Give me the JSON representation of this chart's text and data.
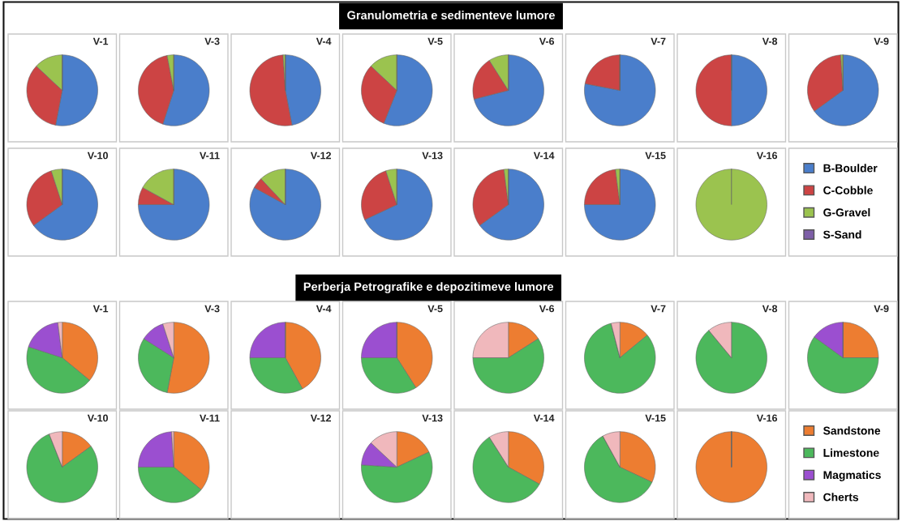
{
  "chart_data": [
    {
      "type": "other",
      "title": "Granulometria e sedimenteve lumore"
    },
    {
      "type": "pie",
      "title": "V-1",
      "categories": [
        "B-Boulder",
        "C-Cobble",
        "G-Gravel",
        "S-Sand"
      ],
      "colors": [
        "#4a7ecb",
        "#cc4444",
        "#9bc34f",
        "#7e5fa8"
      ],
      "values": [
        53,
        34,
        13,
        0
      ],
      "legend": "right"
    },
    {
      "type": "pie",
      "title": "V-3",
      "categories": [
        null,
        null,
        null,
        null
      ],
      "colors": [
        "#4a7ecb",
        "#cc4444",
        "#9bc34f",
        "#7e5fa8"
      ],
      "values": [
        55,
        42,
        3,
        0
      ]
    },
    {
      "type": "pie",
      "title": "V-4",
      "categories": [
        null,
        null,
        null,
        null
      ],
      "colors": [
        "#4a7ecb",
        "#cc4444",
        "#9bc34f",
        "#7e5fa8"
      ],
      "values": [
        47,
        52,
        1,
        0
      ]
    },
    {
      "type": "pie",
      "title": "V-5",
      "categories": [
        null,
        null,
        null,
        null
      ],
      "colors": [
        "#4a7ecb",
        "#cc4444",
        "#9bc34f",
        "#7e5fa8"
      ],
      "values": [
        56,
        31,
        13,
        0
      ]
    },
    {
      "type": "pie",
      "title": "V-6",
      "categories": [
        null,
        null,
        null,
        null
      ],
      "colors": [
        "#4a7ecb",
        "#cc4444",
        "#9bc34f",
        "#7e5fa8"
      ],
      "values": [
        71,
        20,
        9,
        0
      ]
    },
    {
      "type": "pie",
      "title": "V-7",
      "categories": [
        null,
        null,
        null,
        null
      ],
      "colors": [
        "#4a7ecb",
        "#cc4444",
        "#9bc34f",
        "#7e5fa8"
      ],
      "values": [
        78,
        22,
        0,
        0
      ]
    },
    {
      "type": "pie",
      "title": "V-8",
      "categories": [
        null,
        null,
        null,
        null
      ],
      "colors": [
        "#4a7ecb",
        "#cc4444",
        "#9bc34f",
        "#7e5fa8"
      ],
      "values": [
        50,
        50,
        0,
        0
      ]
    },
    {
      "type": "pie",
      "title": "V-9",
      "categories": [
        null,
        null,
        null,
        null
      ],
      "colors": [
        "#4a7ecb",
        "#cc4444",
        "#9bc34f",
        "#7e5fa8"
      ],
      "values": [
        65,
        34,
        1,
        0
      ]
    },
    {
      "type": "pie",
      "title": "V-10",
      "categories": [
        null,
        null,
        null,
        null
      ],
      "colors": [
        "#4a7ecb",
        "#cc4444",
        "#9bc34f",
        "#7e5fa8"
      ],
      "values": [
        65,
        30,
        5,
        0
      ]
    },
    {
      "type": "pie",
      "title": "V-11",
      "categories": [
        null,
        null,
        null,
        null
      ],
      "colors": [
        "#4a7ecb",
        "#cc4444",
        "#9bc34f",
        "#7e5fa8"
      ],
      "values": [
        75,
        8,
        17,
        0
      ]
    },
    {
      "type": "pie",
      "title": "V-12",
      "categories": [
        null,
        null,
        null,
        null
      ],
      "colors": [
        "#4a7ecb",
        "#cc4444",
        "#9bc34f",
        "#7e5fa8"
      ],
      "values": [
        83,
        5,
        12,
        0
      ]
    },
    {
      "type": "pie",
      "title": "V-13",
      "categories": [
        null,
        null,
        null,
        null
      ],
      "colors": [
        "#4a7ecb",
        "#cc4444",
        "#9bc34f",
        "#7e5fa8"
      ],
      "values": [
        68,
        27,
        5,
        0
      ]
    },
    {
      "type": "pie",
      "title": "V-14",
      "categories": [
        null,
        null,
        null,
        null
      ],
      "colors": [
        "#4a7ecb",
        "#cc4444",
        "#9bc34f",
        "#7e5fa8"
      ],
      "values": [
        65,
        33,
        2,
        0
      ]
    },
    {
      "type": "pie",
      "title": "V-15",
      "categories": [
        null,
        null,
        null,
        null
      ],
      "colors": [
        "#4a7ecb",
        "#cc4444",
        "#9bc34f",
        "#7e5fa8"
      ],
      "values": [
        75,
        23,
        2,
        0
      ]
    },
    {
      "type": "pie",
      "title": "V-16",
      "categories": [
        null,
        null,
        null,
        null
      ],
      "colors": [
        "#4a7ecb",
        "#cc4444",
        "#9bc34f",
        "#7e5fa8"
      ],
      "values": [
        0,
        0,
        100,
        0
      ]
    },
    {
      "type": "other",
      "title": "Perberja Petrografike e depozitimeve lumore"
    },
    {
      "type": "pie",
      "title": "V-1",
      "categories": [
        "Sandstone",
        "Limestone",
        "Magmatics",
        "Cherts"
      ],
      "colors": [
        "#ed7d31",
        "#4cb85c",
        "#9b4fd0",
        "#f0b8bc"
      ],
      "values": [
        36,
        44,
        18,
        2
      ],
      "legend": "right"
    },
    {
      "type": "pie",
      "title": "V-3",
      "categories": [
        null,
        null,
        null,
        null
      ],
      "colors": [
        "#ed7d31",
        "#4cb85c",
        "#9b4fd0",
        "#f0b8bc"
      ],
      "values": [
        53,
        31,
        11,
        5
      ]
    },
    {
      "type": "pie",
      "title": "V-4",
      "categories": [
        null,
        null,
        null,
        null
      ],
      "colors": [
        "#ed7d31",
        "#4cb85c",
        "#9b4fd0",
        "#f0b8bc"
      ],
      "values": [
        42,
        33,
        25,
        0
      ]
    },
    {
      "type": "pie",
      "title": "V-5",
      "categories": [
        null,
        null,
        null,
        null
      ],
      "colors": [
        "#ed7d31",
        "#4cb85c",
        "#9b4fd0",
        "#f0b8bc"
      ],
      "values": [
        41,
        34,
        25,
        0
      ]
    },
    {
      "type": "pie",
      "title": "V-6",
      "categories": [
        null,
        null,
        null,
        null
      ],
      "colors": [
        "#ed7d31",
        "#4cb85c",
        "#9b4fd0",
        "#f0b8bc"
      ],
      "values": [
        16,
        59,
        0,
        25
      ]
    },
    {
      "type": "pie",
      "title": "V-7",
      "categories": [
        null,
        null,
        null,
        null
      ],
      "colors": [
        "#ed7d31",
        "#4cb85c",
        "#9b4fd0",
        "#f0b8bc"
      ],
      "values": [
        14,
        82,
        0,
        4
      ]
    },
    {
      "type": "pie",
      "title": "V-8",
      "categories": [
        null,
        null,
        null,
        null
      ],
      "colors": [
        "#ed7d31",
        "#4cb85c",
        "#9b4fd0",
        "#f0b8bc"
      ],
      "values": [
        0,
        89,
        0,
        11
      ]
    },
    {
      "type": "pie",
      "title": "V-9",
      "categories": [
        null,
        null,
        null,
        null
      ],
      "colors": [
        "#ed7d31",
        "#4cb85c",
        "#9b4fd0",
        "#f0b8bc"
      ],
      "values": [
        25,
        60,
        15,
        0
      ]
    },
    {
      "type": "pie",
      "title": "V-10",
      "categories": [
        null,
        null,
        null,
        null
      ],
      "colors": [
        "#ed7d31",
        "#4cb85c",
        "#9b4fd0",
        "#f0b8bc"
      ],
      "values": [
        15,
        79,
        0,
        6
      ]
    },
    {
      "type": "pie",
      "title": "V-11",
      "categories": [
        null,
        null,
        null,
        null
      ],
      "colors": [
        "#ed7d31",
        "#4cb85c",
        "#9b4fd0",
        "#f0b8bc"
      ],
      "values": [
        36,
        39,
        24,
        1
      ]
    },
    {
      "type": "other",
      "title": "V-12"
    },
    {
      "type": "pie",
      "title": "V-13",
      "categories": [
        null,
        null,
        null,
        null
      ],
      "colors": [
        "#ed7d31",
        "#4cb85c",
        "#9b4fd0",
        "#f0b8bc"
      ],
      "values": [
        18,
        58,
        11,
        13
      ]
    },
    {
      "type": "pie",
      "title": "V-14",
      "categories": [
        null,
        null,
        null,
        null
      ],
      "colors": [
        "#ed7d31",
        "#4cb85c",
        "#9b4fd0",
        "#f0b8bc"
      ],
      "values": [
        33,
        58,
        0,
        9
      ]
    },
    {
      "type": "pie",
      "title": "V-15",
      "categories": [
        null,
        null,
        null,
        null
      ],
      "colors": [
        "#ed7d31",
        "#4cb85c",
        "#9b4fd0",
        "#f0b8bc"
      ],
      "values": [
        32,
        60,
        0,
        8
      ]
    },
    {
      "type": "pie",
      "title": "V-16",
      "categories": [
        null,
        null,
        null,
        null
      ],
      "colors": [
        "#ed7d31",
        "#4cb85c",
        "#9b4fd0",
        "#f0b8bc"
      ],
      "values": [
        100,
        0,
        0,
        0
      ]
    }
  ]
}
